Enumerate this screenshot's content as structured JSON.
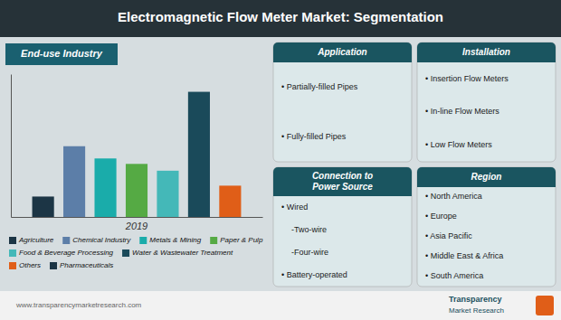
{
  "chart_data": {
    "type": "bar",
    "title": "Electromagnetic Flow Meter Market: Segmentation",
    "subtitle": "End-use Industry",
    "categories": [
      "2019"
    ],
    "series": [
      {
        "name": "Agriculture",
        "color": "#1c3545",
        "values": [
          1.5
        ]
      },
      {
        "name": "Chemical Industry",
        "color": "#5c7ea8",
        "values": [
          5.2
        ]
      },
      {
        "name": "Metals & Mining",
        "color": "#1aacaa",
        "values": [
          4.3
        ]
      },
      {
        "name": "Paper & Pulp",
        "color": "#55aa44",
        "values": [
          3.9
        ]
      },
      {
        "name": "Food & Beverage Processing",
        "color": "#44b8b8",
        "values": [
          3.4
        ]
      },
      {
        "name": "Water & Wastewater Treatment",
        "color": "#1a4a5a",
        "values": [
          9.2
        ]
      },
      {
        "name": "Others",
        "color": "#e05e18",
        "values": [
          2.3
        ]
      },
      {
        "name": "Pharmaceuticals",
        "color": "#1c3545",
        "values": [
          null
        ]
      }
    ],
    "ylim": [
      0,
      10.5
    ],
    "tick_labels": "x",
    "legend": "bottom",
    "annotations": [
      {
        "title": "Application",
        "items": [
          "• Partially-filled Pipes",
          "• Fully-filled Pipes"
        ]
      },
      {
        "title": "Installation",
        "items": [
          "• Insertion Flow Meters",
          "• In-line Flow Meters",
          "• Low Flow Meters"
        ]
      },
      {
        "title": "Connection to\nPower Source",
        "items": [
          "• Wired",
          "-Two-wire",
          "-Four-wire",
          "• Battery-operated"
        ]
      },
      {
        "title": "Region",
        "items": [
          "• North America",
          "• Europe",
          "• Asia Pacific",
          "• Middle East & Africa",
          "• South America"
        ]
      },
      {
        "text": "www.transparencymarketresearch.com"
      },
      {
        "text": "Transparency"
      },
      {
        "text": "Market Research"
      }
    ]
  }
}
